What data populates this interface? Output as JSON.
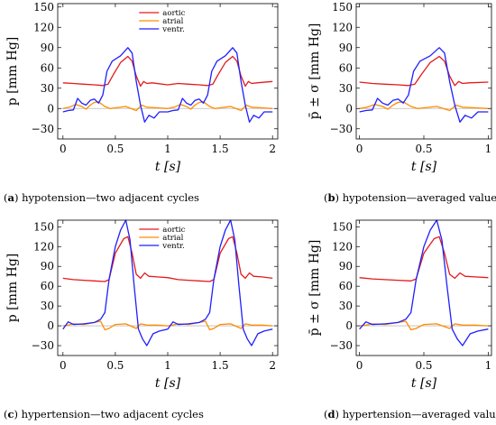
{
  "chart_data": [
    {
      "id": "a",
      "type": "line",
      "caption_letter": "a",
      "caption_text": " hypotension—two adjacent cycles",
      "ylabel": "p [mm Hg]",
      "xlabel": "t [s]",
      "xlim": [
        -0.05,
        2.05
      ],
      "ylim": [
        -45,
        155
      ],
      "xticks": [
        "0",
        "0.5",
        "1",
        "1.5",
        "2"
      ],
      "xtick_values": [
        0,
        0.5,
        1,
        1.5,
        2
      ],
      "yticks": [
        "−30",
        "0",
        "30",
        "60",
        "90",
        "120",
        "150"
      ],
      "ytick_values": [
        -30,
        0,
        30,
        60,
        90,
        120,
        150
      ],
      "grid": false,
      "legend": {
        "placement": "top-center",
        "entries": [
          "aortic",
          "atrial",
          "ventr."
        ]
      },
      "colors": {
        "aortic": "#e41a1c",
        "atrial": "#ff8c00",
        "ventr.": "#1f1fff",
        "zero": "#bbbbbb"
      },
      "series": [
        {
          "name": "aortic",
          "x": [
            0,
            0.1,
            0.2,
            0.3,
            0.38,
            0.43,
            0.48,
            0.55,
            0.62,
            0.66,
            0.7,
            0.74,
            0.77,
            0.8,
            0.85,
            1.0,
            1.1,
            1.2,
            1.3,
            1.38,
            1.43,
            1.48,
            1.55,
            1.62,
            1.66,
            1.7,
            1.74,
            1.77,
            1.8,
            1.85,
            2.0
          ],
          "y": [
            38,
            37,
            36,
            35,
            34,
            36,
            50,
            68,
            77,
            70,
            48,
            33,
            40,
            37,
            38,
            35,
            37,
            36,
            35,
            34,
            36,
            50,
            68,
            77,
            70,
            48,
            33,
            40,
            37,
            38,
            40
          ]
        },
        {
          "name": "atrial",
          "x": [
            0,
            0.06,
            0.12,
            0.18,
            0.22,
            0.26,
            0.3,
            0.34,
            0.4,
            0.45,
            0.5,
            0.6,
            0.7,
            0.75,
            0.8,
            0.9,
            1.0,
            1.06,
            1.12,
            1.18,
            1.22,
            1.26,
            1.3,
            1.34,
            1.4,
            1.45,
            1.5,
            1.6,
            1.7,
            1.75,
            1.8,
            1.9,
            2.0
          ],
          "y": [
            0,
            2,
            6,
            3,
            -1,
            5,
            9,
            10,
            3,
            0,
            1,
            3,
            -3,
            5,
            2,
            1,
            0,
            2,
            6,
            3,
            -1,
            5,
            9,
            10,
            3,
            0,
            1,
            3,
            -3,
            5,
            2,
            1,
            0
          ]
        },
        {
          "name": "ventr.",
          "x": [
            0,
            0.05,
            0.1,
            0.14,
            0.18,
            0.22,
            0.26,
            0.3,
            0.34,
            0.38,
            0.42,
            0.47,
            0.55,
            0.62,
            0.66,
            0.7,
            0.74,
            0.78,
            0.82,
            0.87,
            0.92,
            1.0,
            1.05,
            1.1,
            1.14,
            1.18,
            1.22,
            1.26,
            1.3,
            1.34,
            1.38,
            1.42,
            1.47,
            1.55,
            1.62,
            1.66,
            1.7,
            1.74,
            1.78,
            1.82,
            1.87,
            1.92,
            2.0
          ],
          "y": [
            -5,
            -3,
            -2,
            15,
            8,
            5,
            12,
            14,
            8,
            20,
            55,
            70,
            78,
            90,
            82,
            40,
            5,
            -20,
            -10,
            -14,
            -5,
            -5,
            -3,
            -2,
            15,
            8,
            5,
            12,
            14,
            8,
            20,
            55,
            70,
            78,
            90,
            82,
            40,
            5,
            -20,
            -10,
            -14,
            -5,
            -5
          ]
        }
      ]
    },
    {
      "id": "b",
      "type": "line",
      "caption_letter": "b",
      "caption_text": " hypotension—averaged values",
      "ylabel": "p̄ ± σ [mm Hg]",
      "xlabel": "t [s]",
      "xlim": [
        -0.025,
        1.025
      ],
      "ylim": [
        -45,
        155
      ],
      "xticks": [
        "0",
        "0.5",
        "1"
      ],
      "xtick_values": [
        0,
        0.5,
        1
      ],
      "yticks": [
        "−30",
        "0",
        "30",
        "60",
        "90",
        "120",
        "150"
      ],
      "ytick_values": [
        -30,
        0,
        30,
        60,
        90,
        120,
        150
      ],
      "grid": false,
      "colors": {
        "aortic": "#e41a1c",
        "atrial": "#ff8c00",
        "ventr.": "#1f1fff",
        "zero": "#bbbbbb"
      },
      "series": [
        {
          "name": "aortic",
          "x": [
            0,
            0.1,
            0.2,
            0.3,
            0.38,
            0.43,
            0.48,
            0.55,
            0.62,
            0.66,
            0.7,
            0.74,
            0.77,
            0.8,
            0.85,
            1.0
          ],
          "y": [
            39,
            37,
            36,
            35,
            34,
            36,
            50,
            68,
            77,
            70,
            48,
            34,
            40,
            37,
            38,
            39
          ]
        },
        {
          "name": "atrial",
          "x": [
            0,
            0.06,
            0.12,
            0.18,
            0.22,
            0.26,
            0.3,
            0.34,
            0.4,
            0.45,
            0.5,
            0.6,
            0.7,
            0.75,
            0.8,
            0.9,
            1.0
          ],
          "y": [
            0,
            2,
            6,
            3,
            -1,
            5,
            9,
            10,
            3,
            0,
            1,
            3,
            -3,
            5,
            2,
            1,
            0
          ]
        },
        {
          "name": "ventr.",
          "x": [
            0,
            0.05,
            0.1,
            0.14,
            0.18,
            0.22,
            0.26,
            0.3,
            0.34,
            0.38,
            0.42,
            0.47,
            0.55,
            0.62,
            0.66,
            0.7,
            0.74,
            0.78,
            0.82,
            0.87,
            0.92,
            1.0
          ],
          "y": [
            -5,
            -3,
            -2,
            15,
            8,
            5,
            12,
            14,
            8,
            20,
            55,
            70,
            78,
            90,
            82,
            40,
            5,
            -20,
            -10,
            -14,
            -5,
            -5
          ]
        }
      ]
    },
    {
      "id": "c",
      "type": "line",
      "caption_letter": "c",
      "caption_text": " hypertension—two adjacent cycles",
      "ylabel": "p [mm Hg]",
      "xlabel": "t [s]",
      "xlim": [
        -0.05,
        2.05
      ],
      "ylim": [
        -45,
        160
      ],
      "xticks": [
        "0",
        "0.5",
        "1",
        "1.5",
        "2"
      ],
      "xtick_values": [
        0,
        0.5,
        1,
        1.5,
        2
      ],
      "yticks": [
        "−30",
        "0",
        "30",
        "60",
        "90",
        "120",
        "150"
      ],
      "ytick_values": [
        -30,
        0,
        30,
        60,
        90,
        120,
        150
      ],
      "grid": false,
      "legend": {
        "placement": "top-center",
        "entries": [
          "aortic",
          "atrial",
          "ventr."
        ]
      },
      "colors": {
        "aortic": "#e41a1c",
        "atrial": "#ff8c00",
        "ventr.": "#1f1fff",
        "zero": "#bbbbbb"
      },
      "series": [
        {
          "name": "aortic",
          "x": [
            0,
            0.1,
            0.2,
            0.3,
            0.4,
            0.44,
            0.5,
            0.58,
            0.62,
            0.66,
            0.7,
            0.74,
            0.78,
            0.82,
            0.9,
            1.0,
            1.1,
            1.2,
            1.3,
            1.4,
            1.44,
            1.5,
            1.58,
            1.62,
            1.66,
            1.7,
            1.74,
            1.78,
            1.82,
            1.9,
            2.0
          ],
          "y": [
            72,
            70,
            69,
            68,
            67,
            70,
            110,
            132,
            135,
            110,
            78,
            72,
            80,
            75,
            74,
            73,
            70,
            69,
            68,
            67,
            70,
            110,
            132,
            135,
            110,
            78,
            72,
            80,
            75,
            74,
            72
          ]
        },
        {
          "name": "atrial",
          "x": [
            0,
            0.05,
            0.1,
            0.2,
            0.3,
            0.36,
            0.4,
            0.44,
            0.5,
            0.6,
            0.7,
            0.74,
            0.8,
            0.9,
            1.0,
            1.05,
            1.1,
            1.2,
            1.3,
            1.36,
            1.4,
            1.44,
            1.5,
            1.6,
            1.7,
            1.74,
            1.8,
            1.9,
            2.0
          ],
          "y": [
            0,
            1,
            3,
            2,
            5,
            7,
            -6,
            -4,
            2,
            3,
            -4,
            3,
            1,
            1,
            0,
            1,
            3,
            2,
            5,
            7,
            -6,
            -4,
            2,
            3,
            -4,
            3,
            1,
            1,
            0
          ]
        },
        {
          "name": "ventr.",
          "x": [
            0,
            0.05,
            0.1,
            0.2,
            0.3,
            0.36,
            0.4,
            0.44,
            0.5,
            0.55,
            0.6,
            0.64,
            0.68,
            0.72,
            0.76,
            0.8,
            0.86,
            0.92,
            1.0,
            1.05,
            1.1,
            1.2,
            1.3,
            1.36,
            1.4,
            1.44,
            1.5,
            1.55,
            1.6,
            1.64,
            1.68,
            1.72,
            1.76,
            1.8,
            1.86,
            1.92,
            2.0
          ],
          "y": [
            -5,
            6,
            2,
            3,
            5,
            10,
            20,
            70,
            120,
            145,
            160,
            130,
            60,
            -5,
            -20,
            -30,
            -12,
            -8,
            -5,
            6,
            2,
            3,
            5,
            10,
            20,
            70,
            120,
            145,
            160,
            130,
            60,
            -5,
            -20,
            -30,
            -12,
            -8,
            -5
          ]
        }
      ]
    },
    {
      "id": "d",
      "type": "line",
      "caption_letter": "d",
      "caption_text": " hypertension—averaged values",
      "ylabel": "p̄ ± σ [mm Hg]",
      "xlabel": "t [s]",
      "xlim": [
        -0.025,
        1.025
      ],
      "ylim": [
        -45,
        160
      ],
      "xticks": [
        "0",
        "0.5",
        "1"
      ],
      "xtick_values": [
        0,
        0.5,
        1
      ],
      "yticks": [
        "−30",
        "0",
        "30",
        "60",
        "90",
        "120",
        "150"
      ],
      "ytick_values": [
        -30,
        0,
        30,
        60,
        90,
        120,
        150
      ],
      "grid": false,
      "colors": {
        "aortic": "#e41a1c",
        "atrial": "#ff8c00",
        "ventr.": "#1f1fff",
        "zero": "#bbbbbb"
      },
      "series": [
        {
          "name": "aortic",
          "x": [
            0,
            0.1,
            0.2,
            0.3,
            0.4,
            0.44,
            0.5,
            0.58,
            0.62,
            0.66,
            0.7,
            0.74,
            0.78,
            0.82,
            0.9,
            1.0
          ],
          "y": [
            73,
            71,
            70,
            69,
            68,
            71,
            110,
            132,
            135,
            110,
            78,
            72,
            80,
            75,
            74,
            73
          ]
        },
        {
          "name": "atrial",
          "x": [
            0,
            0.05,
            0.1,
            0.2,
            0.3,
            0.36,
            0.4,
            0.44,
            0.5,
            0.6,
            0.7,
            0.74,
            0.8,
            0.9,
            1.0
          ],
          "y": [
            0,
            1,
            3,
            2,
            5,
            7,
            -6,
            -4,
            2,
            3,
            -4,
            3,
            1,
            1,
            0
          ]
        },
        {
          "name": "ventr.",
          "x": [
            0,
            0.05,
            0.1,
            0.2,
            0.3,
            0.36,
            0.4,
            0.44,
            0.5,
            0.55,
            0.6,
            0.64,
            0.68,
            0.72,
            0.76,
            0.8,
            0.86,
            0.92,
            1.0
          ],
          "y": [
            -5,
            6,
            2,
            3,
            5,
            10,
            20,
            70,
            120,
            145,
            160,
            130,
            60,
            -5,
            -20,
            -30,
            -12,
            -8,
            -5
          ]
        }
      ]
    }
  ]
}
